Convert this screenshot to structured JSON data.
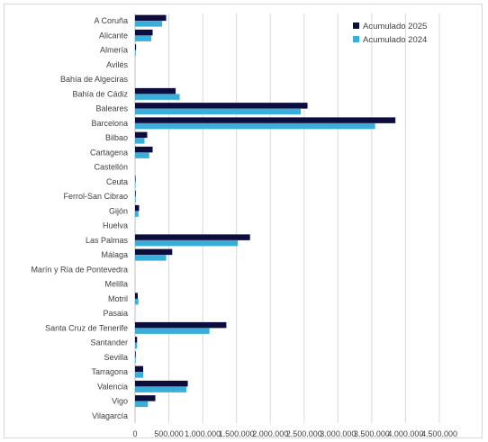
{
  "chart_data": {
    "type": "bar",
    "orientation": "horizontal",
    "categories": [
      "A Coruña",
      "Alicante",
      "Almería",
      "Avilés",
      "Bahía de Algeciras",
      "Bahía de Cádiz",
      "Baleares",
      "Barcelona",
      "Bilbao",
      "Cartagena",
      "Castellón",
      "Ceuta",
      "Ferrol-San Cibrao",
      "Gijón",
      "Huelva",
      "Las Palmas",
      "Málaga",
      "Marín y Ría de Pontevedra",
      "Melilla",
      "Motril",
      "Pasaia",
      "Santa Cruz de Tenerife",
      "Santander",
      "Sevilla",
      "Tarragona",
      "Valencia",
      "Vigo",
      "Vilagarcía"
    ],
    "series": [
      {
        "name": "Acumulado 2025",
        "color": "#0d0d3d",
        "values": [
          460000,
          260000,
          15000,
          0,
          0,
          600000,
          2550000,
          3850000,
          180000,
          260000,
          0,
          8000,
          10000,
          60000,
          0,
          1700000,
          550000,
          0,
          0,
          40000,
          0,
          1350000,
          30000,
          10000,
          120000,
          780000,
          300000,
          0
        ]
      },
      {
        "name": "Acumulado 2024",
        "color": "#3aaed8",
        "values": [
          400000,
          240000,
          10000,
          0,
          0,
          660000,
          2450000,
          3550000,
          140000,
          210000,
          0,
          8000,
          10000,
          50000,
          0,
          1520000,
          460000,
          0,
          0,
          50000,
          0,
          1100000,
          30000,
          10000,
          120000,
          760000,
          190000,
          0
        ]
      }
    ],
    "xlim": [
      0,
      4500000
    ],
    "xticks": [
      "0",
      "500.000",
      "1.000.000",
      "1.500.000",
      "2.000.000",
      "2.500.000",
      "3.000.000",
      "3.500.000",
      "4.000.000",
      "4.500.000"
    ],
    "grid": "vertical",
    "legend_position": "top-right"
  }
}
